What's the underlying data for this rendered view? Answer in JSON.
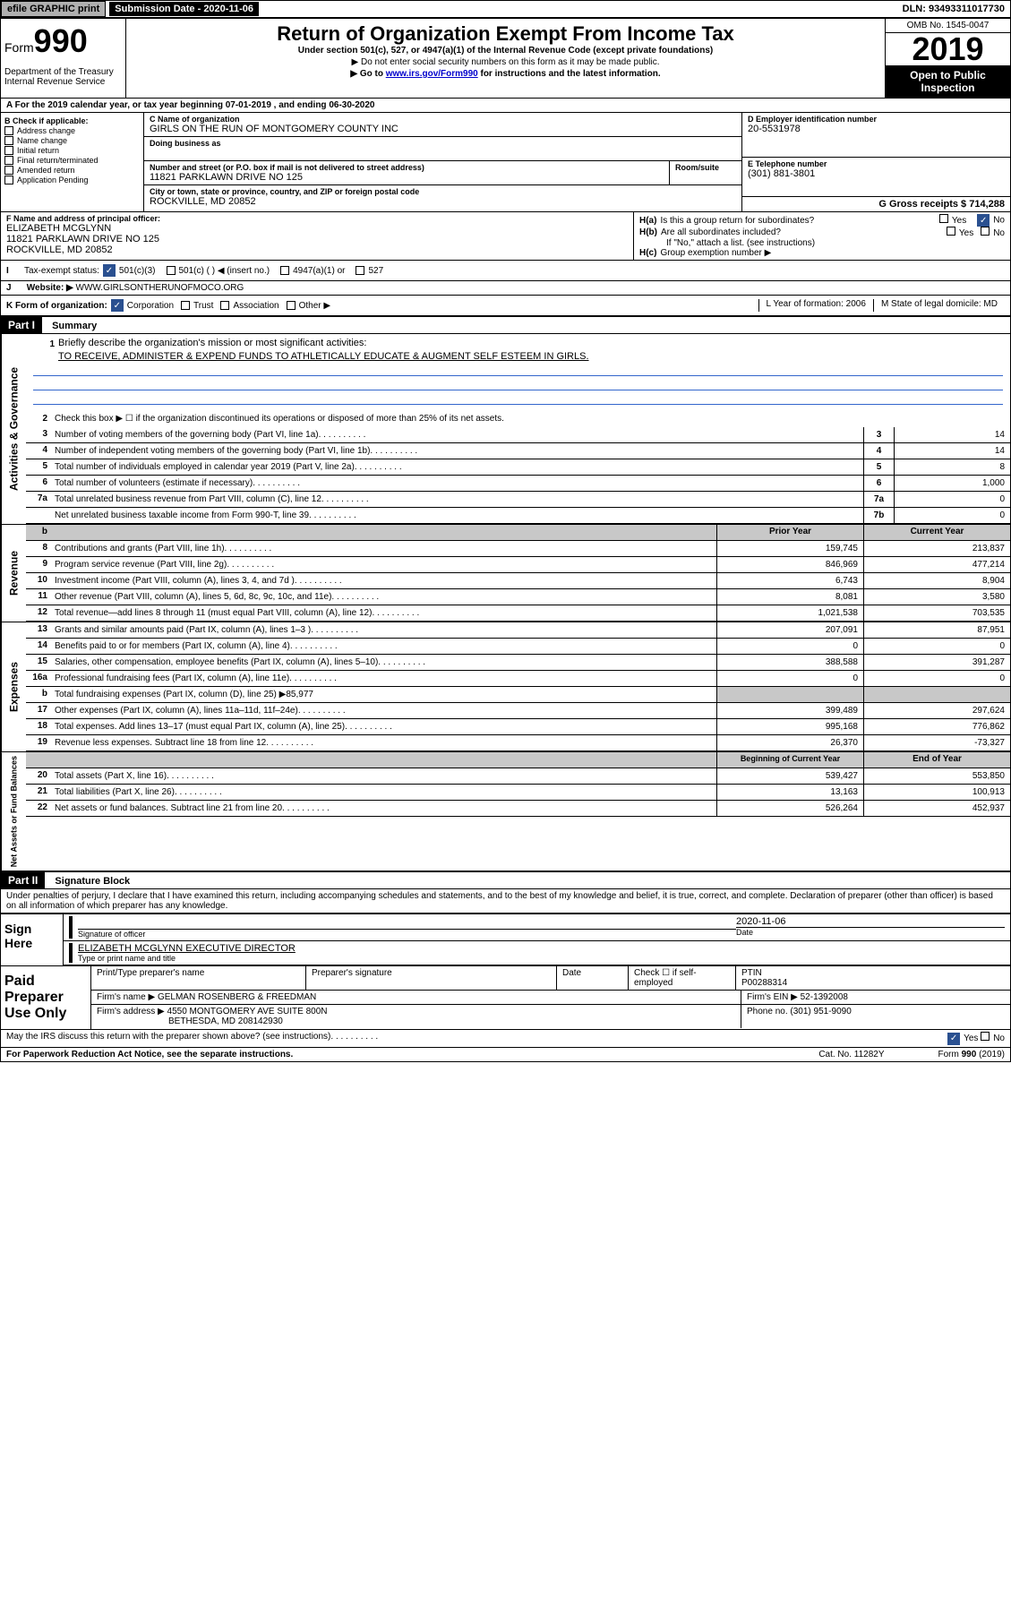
{
  "top": {
    "efile": "efile GRAPHIC print",
    "sub_label": "Submission Date - 2020-11-06",
    "dln": "DLN: 93493311017730"
  },
  "header": {
    "form_prefix": "Form",
    "form_num": "990",
    "dept": "Department of the Treasury\nInternal Revenue Service",
    "title": "Return of Organization Exempt From Income Tax",
    "subtitle": "Under section 501(c), 527, or 4947(a)(1) of the Internal Revenue Code (except private foundations)",
    "note1": "▶ Do not enter social security numbers on this form as it may be made public.",
    "note2_pre": "▶ Go to ",
    "note2_link": "www.irs.gov/Form990",
    "note2_post": " for instructions and the latest information.",
    "omb": "OMB No. 1545-0047",
    "year": "2019",
    "open": "Open to Public Inspection"
  },
  "period": "A For the 2019 calendar year, or tax year beginning 07-01-2019   , and ending 06-30-2020",
  "b": {
    "label": "B Check if applicable:",
    "opts": [
      "Address change",
      "Name change",
      "Initial return",
      "Final return/terminated",
      "Amended return",
      "Application Pending"
    ]
  },
  "c": {
    "name_label": "C Name of organization",
    "name": "GIRLS ON THE RUN OF MONTGOMERY COUNTY INC",
    "dba_label": "Doing business as",
    "addr_label": "Number and street (or P.O. box if mail is not delivered to street address)",
    "addr": "11821 PARKLAWN DRIVE NO 125",
    "room_label": "Room/suite",
    "city_label": "City or town, state or province, country, and ZIP or foreign postal code",
    "city": "ROCKVILLE, MD  20852"
  },
  "d": {
    "label": "D Employer identification number",
    "val": "20-5531978"
  },
  "e": {
    "label": "E Telephone number",
    "val": "(301) 881-3801"
  },
  "g": {
    "label": "G Gross receipts $ 714,288"
  },
  "f": {
    "label": "F Name and address of principal officer:",
    "name": "ELIZABETH MCGLYNN",
    "addr1": "11821 PARKLAWN DRIVE NO 125",
    "addr2": "ROCKVILLE, MD  20852"
  },
  "h": {
    "a": "Is this a group return for subordinates?",
    "b": "Are all subordinates included?",
    "c_note": "If \"No,\" attach a list. (see instructions)",
    "c": "Group exemption number ▶",
    "yes": "Yes",
    "no": "No"
  },
  "i": {
    "label": "Tax-exempt status:",
    "o1": "501(c)(3)",
    "o2": "501(c) (  ) ◀ (insert no.)",
    "o3": "4947(a)(1) or",
    "o4": "527"
  },
  "j": {
    "label": "Website: ▶",
    "val": "WWW.GIRLSONTHERUNOFMOCO.ORG"
  },
  "k": {
    "label": "K Form of organization:",
    "o1": "Corporation",
    "o2": "Trust",
    "o3": "Association",
    "o4": "Other ▶",
    "l_label": "L Year of formation: 2006",
    "m_label": "M State of legal domicile: MD"
  },
  "part1": {
    "header": "Part I",
    "title": "Summary"
  },
  "tabs": {
    "gov": "Activities & Governance",
    "rev": "Revenue",
    "exp": "Expenses",
    "net": "Net Assets or Fund Balances"
  },
  "l1": {
    "text": "Briefly describe the organization's mission or most significant activities:",
    "mission": "TO RECEIVE, ADMINISTER & EXPEND FUNDS TO ATHLETICALLY EDUCATE & AUGMENT SELF ESTEEM IN GIRLS."
  },
  "l2": "Check this box ▶ ☐  if the organization discontinued its operations or disposed of more than 25% of its net assets.",
  "lines_gov": [
    {
      "n": "3",
      "t": "Number of voting members of the governing body (Part VI, line 1a)",
      "c": "3",
      "v": "14"
    },
    {
      "n": "4",
      "t": "Number of independent voting members of the governing body (Part VI, line 1b)",
      "c": "4",
      "v": "14"
    },
    {
      "n": "5",
      "t": "Total number of individuals employed in calendar year 2019 (Part V, line 2a)",
      "c": "5",
      "v": "8"
    },
    {
      "n": "6",
      "t": "Total number of volunteers (estimate if necessary)",
      "c": "6",
      "v": "1,000"
    },
    {
      "n": "7a",
      "t": "Total unrelated business revenue from Part VIII, column (C), line 12",
      "c": "7a",
      "v": "0"
    },
    {
      "n": "",
      "t": "Net unrelated business taxable income from Form 990-T, line 39",
      "c": "7b",
      "v": "0"
    }
  ],
  "col_hdr": {
    "b": "b",
    "py": "Prior Year",
    "cy": "Current Year"
  },
  "lines_rev": [
    {
      "n": "8",
      "t": "Contributions and grants (Part VIII, line 1h)",
      "py": "159,745",
      "cy": "213,837"
    },
    {
      "n": "9",
      "t": "Program service revenue (Part VIII, line 2g)",
      "py": "846,969",
      "cy": "477,214"
    },
    {
      "n": "10",
      "t": "Investment income (Part VIII, column (A), lines 3, 4, and 7d )",
      "py": "6,743",
      "cy": "8,904"
    },
    {
      "n": "11",
      "t": "Other revenue (Part VIII, column (A), lines 5, 6d, 8c, 9c, 10c, and 11e)",
      "py": "8,081",
      "cy": "3,580"
    },
    {
      "n": "12",
      "t": "Total revenue—add lines 8 through 11 (must equal Part VIII, column (A), line 12)",
      "py": "1,021,538",
      "cy": "703,535"
    }
  ],
  "lines_exp": [
    {
      "n": "13",
      "t": "Grants and similar amounts paid (Part IX, column (A), lines 1–3 )",
      "py": "207,091",
      "cy": "87,951"
    },
    {
      "n": "14",
      "t": "Benefits paid to or for members (Part IX, column (A), line 4)",
      "py": "0",
      "cy": "0"
    },
    {
      "n": "15",
      "t": "Salaries, other compensation, employee benefits (Part IX, column (A), lines 5–10)",
      "py": "388,588",
      "cy": "391,287"
    },
    {
      "n": "16a",
      "t": "Professional fundraising fees (Part IX, column (A), line 11e)",
      "py": "0",
      "cy": "0"
    },
    {
      "n": "b",
      "t": "Total fundraising expenses (Part IX, column (D), line 25) ▶85,977",
      "py": "",
      "cy": "",
      "shade": true
    },
    {
      "n": "17",
      "t": "Other expenses (Part IX, column (A), lines 11a–11d, 11f–24e)",
      "py": "399,489",
      "cy": "297,624"
    },
    {
      "n": "18",
      "t": "Total expenses. Add lines 13–17 (must equal Part IX, column (A), line 25)",
      "py": "995,168",
      "cy": "776,862"
    },
    {
      "n": "19",
      "t": "Revenue less expenses. Subtract line 18 from line 12",
      "py": "26,370",
      "cy": "-73,327"
    }
  ],
  "col_hdr2": {
    "py": "Beginning of Current Year",
    "cy": "End of Year"
  },
  "lines_net": [
    {
      "n": "20",
      "t": "Total assets (Part X, line 16)",
      "py": "539,427",
      "cy": "553,850"
    },
    {
      "n": "21",
      "t": "Total liabilities (Part X, line 26)",
      "py": "13,163",
      "cy": "100,913"
    },
    {
      "n": "22",
      "t": "Net assets or fund balances. Subtract line 21 from line 20",
      "py": "526,264",
      "cy": "452,937"
    }
  ],
  "part2": {
    "header": "Part II",
    "title": "Signature Block"
  },
  "perjury": "Under penalties of perjury, I declare that I have examined this return, including accompanying schedules and statements, and to the best of my knowledge and belief, it is true, correct, and complete. Declaration of preparer (other than officer) is based on all information of which preparer has any knowledge.",
  "sign": {
    "label": "Sign Here",
    "sig_label": "Signature of officer",
    "date_label": "Date",
    "date": "2020-11-06",
    "name": "ELIZABETH MCGLYNN EXECUTIVE DIRECTOR",
    "name_label": "Type or print name and title"
  },
  "paid": {
    "label": "Paid Preparer Use Only",
    "h1": "Print/Type preparer's name",
    "h2": "Preparer's signature",
    "h3": "Date",
    "h4_a": "Check ☐ if self-employed",
    "h4_b": "PTIN",
    "ptin": "P00288314",
    "firm_label": "Firm's name    ▶",
    "firm": "GELMAN ROSENBERG & FREEDMAN",
    "ein_label": "Firm's EIN ▶",
    "ein": "52-1392008",
    "addr_label": "Firm's address ▶",
    "addr": "4550 MONTGOMERY AVE SUITE 800N",
    "addr2": "BETHESDA, MD  208142930",
    "phone_label": "Phone no.",
    "phone": "(301) 951-9090"
  },
  "discuss": "May the IRS discuss this return with the preparer shown above? (see instructions)",
  "footer": {
    "left": "For Paperwork Reduction Act Notice, see the separate instructions.",
    "mid": "Cat. No. 11282Y",
    "right": "Form 990 (2019)"
  }
}
